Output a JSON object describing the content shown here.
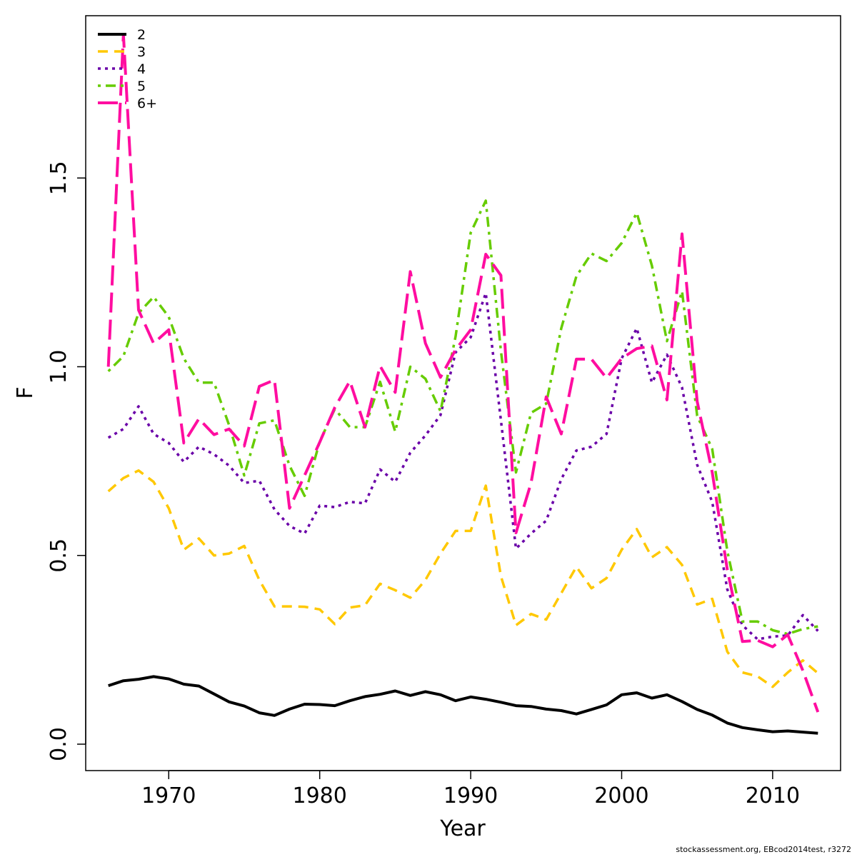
{
  "footnote": "stockassessment.org, EBcod2014test, r3272",
  "chart_data": {
    "type": "line",
    "xlabel": "Year",
    "ylabel": "F",
    "xlim": [
      1964.5,
      2014.5
    ],
    "ylim": [
      -0.07,
      1.93
    ],
    "x_ticks": [
      1970,
      1980,
      1990,
      2000,
      2010
    ],
    "x_tick_labels": [
      "1970",
      "1980",
      "1990",
      "2000",
      "2010"
    ],
    "y_ticks": [
      0.0,
      0.5,
      1.0,
      1.5
    ],
    "y_tick_labels": [
      "0.0",
      "0.5",
      "1.0",
      "1.5"
    ],
    "grid": false,
    "legend_position": "top-left",
    "x": [
      1966,
      1967,
      1968,
      1969,
      1970,
      1971,
      1972,
      1973,
      1974,
      1975,
      1976,
      1977,
      1978,
      1979,
      1980,
      1981,
      1982,
      1983,
      1984,
      1985,
      1986,
      1987,
      1988,
      1989,
      1990,
      1991,
      1992,
      1993,
      1994,
      1995,
      1996,
      1997,
      1998,
      1999,
      2000,
      2001,
      2002,
      2003,
      2004,
      2005,
      2006,
      2007,
      2008,
      2009,
      2010,
      2011,
      2012,
      2013
    ],
    "series": [
      {
        "name": "2",
        "color": "#000000",
        "dash": "solid",
        "width": 4,
        "values": [
          0.155,
          0.168,
          0.172,
          0.179,
          0.173,
          0.159,
          0.154,
          0.133,
          0.112,
          0.101,
          0.083,
          0.076,
          0.093,
          0.106,
          0.105,
          0.102,
          0.115,
          0.126,
          0.132,
          0.141,
          0.129,
          0.139,
          0.131,
          0.115,
          0.125,
          0.119,
          0.111,
          0.102,
          0.1,
          0.093,
          0.089,
          0.08,
          0.092,
          0.104,
          0.131,
          0.136,
          0.122,
          0.131,
          0.113,
          0.092,
          0.077,
          0.056,
          0.044,
          0.038,
          0.033,
          0.035,
          0.032,
          0.029
        ]
      },
      {
        "name": "3",
        "color": "#ffc800",
        "dash": "dashed",
        "width": 3.5,
        "values": [
          0.67,
          0.705,
          0.725,
          0.695,
          0.625,
          0.515,
          0.545,
          0.5,
          0.505,
          0.525,
          0.435,
          0.365,
          0.365,
          0.364,
          0.357,
          0.318,
          0.362,
          0.368,
          0.425,
          0.408,
          0.388,
          0.435,
          0.505,
          0.565,
          0.565,
          0.685,
          0.445,
          0.315,
          0.345,
          0.33,
          0.4,
          0.47,
          0.413,
          0.44,
          0.515,
          0.57,
          0.495,
          0.522,
          0.475,
          0.37,
          0.385,
          0.245,
          0.19,
          0.18,
          0.152,
          0.19,
          0.222,
          0.188
        ]
      },
      {
        "name": "4",
        "color": "#6a00a8",
        "dash": "dotted",
        "width": 3.5,
        "values": [
          0.812,
          0.835,
          0.895,
          0.822,
          0.798,
          0.748,
          0.788,
          0.768,
          0.738,
          0.692,
          0.698,
          0.622,
          0.578,
          0.558,
          0.632,
          0.628,
          0.642,
          0.638,
          0.728,
          0.695,
          0.772,
          0.818,
          0.872,
          1.038,
          1.078,
          1.195,
          0.858,
          0.518,
          0.558,
          0.592,
          0.702,
          0.778,
          0.788,
          0.822,
          1.022,
          1.102,
          0.958,
          1.032,
          0.945,
          0.74,
          0.642,
          0.41,
          0.315,
          0.278,
          0.285,
          0.288,
          0.342,
          0.3
        ]
      },
      {
        "name": "5",
        "color": "#66cc00",
        "dash": "dashdot",
        "width": 3.5,
        "values": [
          0.988,
          1.028,
          1.142,
          1.185,
          1.132,
          1.022,
          0.958,
          0.958,
          0.845,
          0.712,
          0.85,
          0.858,
          0.738,
          0.658,
          0.802,
          0.888,
          0.84,
          0.84,
          0.96,
          0.828,
          1.0,
          0.968,
          0.882,
          1.08,
          1.355,
          1.44,
          1.042,
          0.72,
          0.878,
          0.902,
          1.102,
          1.24,
          1.3,
          1.28,
          1.328,
          1.408,
          1.268,
          1.068,
          1.2,
          0.87,
          0.782,
          0.512,
          0.325,
          0.325,
          0.302,
          0.292,
          0.305,
          0.312
        ]
      },
      {
        "name": "6+",
        "color": "#ff0da0",
        "dash": "longdash",
        "width": 4,
        "values": [
          1.0,
          1.88,
          1.15,
          1.062,
          1.098,
          0.798,
          0.862,
          0.82,
          0.835,
          0.79,
          0.948,
          0.965,
          0.625,
          0.712,
          0.8,
          0.892,
          0.962,
          0.84,
          1.002,
          0.932,
          1.252,
          1.062,
          0.972,
          1.045,
          1.098,
          1.298,
          1.242,
          0.56,
          0.692,
          0.92,
          0.822,
          1.02,
          1.02,
          0.97,
          1.022,
          1.048,
          1.055,
          0.912,
          1.352,
          0.908,
          0.72,
          0.462,
          0.272,
          0.275,
          0.258,
          0.29,
          0.195,
          0.085
        ]
      }
    ]
  }
}
